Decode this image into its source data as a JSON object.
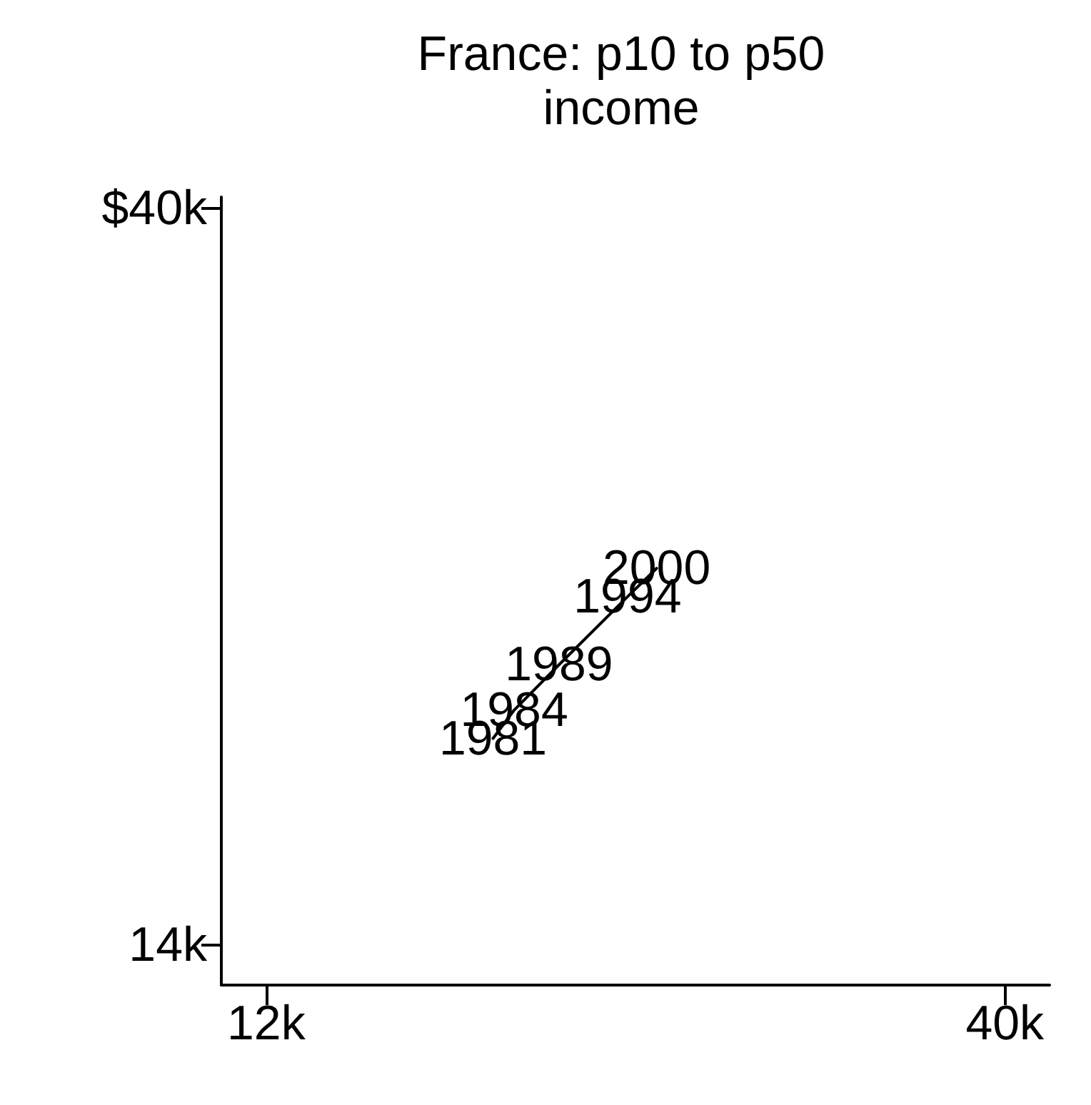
{
  "chart_data": {
    "type": "line",
    "title": "France: p10 to p50\nincome",
    "x": [
      20.6,
      21.4,
      23.1,
      25.7,
      26.8
    ],
    "series": [
      {
        "color": "#000000",
        "values": [
          21.3,
          22.3,
          23.9,
          26.3,
          27.3
        ]
      }
    ],
    "annotations": [
      {
        "text": "1981",
        "x": 20.6,
        "y": 21.3
      },
      {
        "text": "1984",
        "x": 21.4,
        "y": 22.3
      },
      {
        "text": "1989",
        "x": 23.1,
        "y": 23.9
      },
      {
        "text": "1994",
        "x": 25.7,
        "y": 26.3
      },
      {
        "text": "2000",
        "x": 26.8,
        "y": 27.3
      }
    ],
    "xlim": [
      10.3,
      41.7
    ],
    "xticks": [
      {
        "value": 12,
        "label": "12k"
      },
      {
        "value": 40,
        "label": "40k"
      }
    ],
    "ylim": [
      12.6,
      40.4
    ],
    "yticks": [
      {
        "value": 14,
        "label": "14k"
      },
      {
        "value": 40,
        "label": "$40k"
      }
    ],
    "grid": false,
    "marker": "none",
    "line_style": "solid"
  }
}
